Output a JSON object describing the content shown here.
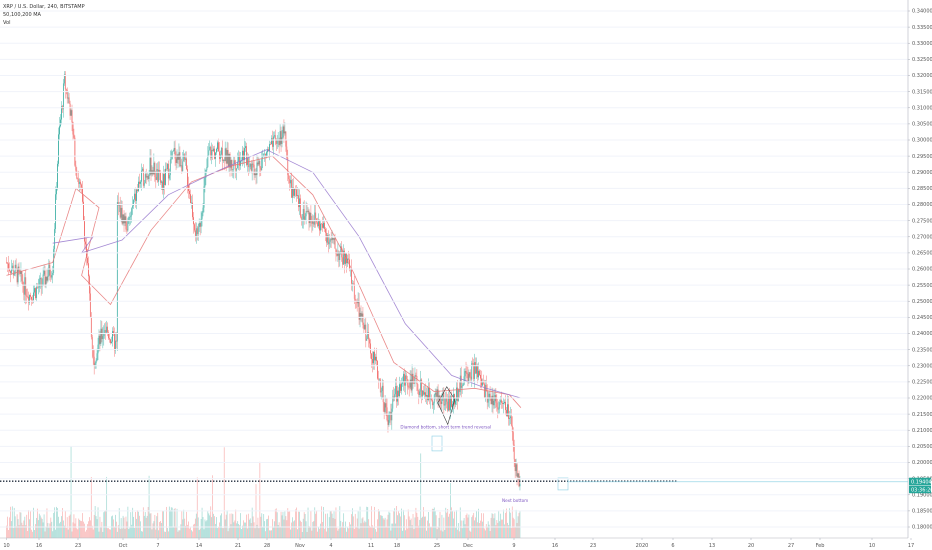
{
  "legend": {
    "symbol_line": "XRP / U.S. Dollar, 240, BITSTAMP",
    "ma_line": "50,100,200 MA",
    "vol_line": "Vol"
  },
  "colors": {
    "up": "#26a69a",
    "down": "#ef5350",
    "ma_fast": "#e57373",
    "ma_slow": "#9575cd",
    "pattern": "#7e57c2",
    "support": "#1e2a3a",
    "price_tag": "#26a69a",
    "current_line": "#9ad6e8"
  },
  "chart_data": {
    "type": "candlestick",
    "y_axis": {
      "ylim": [
        0.18,
        0.34
      ],
      "ticks": [
        "0.34000",
        "0.33500",
        "0.33000",
        "0.32500",
        "0.32000",
        "0.31500",
        "0.31000",
        "0.30500",
        "0.30000",
        "0.29500",
        "0.29000",
        "0.28500",
        "0.28000",
        "0.27500",
        "0.27000",
        "0.26500",
        "0.26000",
        "0.25500",
        "0.25000",
        "0.24500",
        "0.24000",
        "0.23500",
        "0.23000",
        "0.22500",
        "0.22000",
        "0.21500",
        "0.21000",
        "0.20500",
        "0.20000",
        "0.19500",
        "0.19000",
        "0.18500",
        "0.18000"
      ]
    },
    "x_axis": {
      "ticks": [
        "10",
        "16",
        "23",
        "Oct",
        "7",
        "14",
        "21",
        "28",
        "Nov",
        "4",
        "11",
        "18",
        "25",
        "Dec",
        "9",
        "16",
        "23",
        "2020",
        "6",
        "13",
        "20",
        "27",
        "Feb",
        "10",
        "17"
      ]
    },
    "last_price": "0.19404",
    "countdown": "03:36:26",
    "support_level": 0.1942,
    "annotations": [
      {
        "text": "Diamond bottom, short term trend reversal",
        "anchor_time": "Dec 5",
        "price": 0.2105
      },
      {
        "text": "Next bottom",
        "anchor_time": "Dec 17",
        "price": 0.1878
      }
    ],
    "price_path": [
      [
        "Sep 10",
        0.262
      ],
      [
        "Sep 12",
        0.258
      ],
      [
        "Sep 14",
        0.252
      ],
      [
        "Sep 16",
        0.255
      ],
      [
        "Sep 18",
        0.261
      ],
      [
        "Sep 19",
        0.3
      ],
      [
        "Sep 20",
        0.318
      ],
      [
        "Sep 21",
        0.31
      ],
      [
        "Sep 22",
        0.292
      ],
      [
        "Sep 23",
        0.283
      ],
      [
        "Sep 24",
        0.26
      ],
      [
        "Sep 25",
        0.232
      ],
      [
        "Sep 27",
        0.242
      ],
      [
        "Sep 29",
        0.236
      ],
      [
        "Oct 1",
        0.248
      ],
      [
        "Oct 3",
        0.244
      ],
      [
        "Oct 5",
        0.248
      ],
      [
        "Oct 7",
        0.256
      ],
      [
        "Oct 9",
        0.28
      ],
      [
        "Oct 11",
        0.273
      ],
      [
        "Oct 13",
        0.287
      ],
      [
        "Oct 15",
        0.292
      ],
      [
        "Oct 17",
        0.286
      ],
      [
        "Oct 19",
        0.296
      ],
      [
        "Oct 21",
        0.292
      ],
      [
        "Oct 23",
        0.268
      ],
      [
        "Oct 25",
        0.296
      ],
      [
        "Oct 27",
        0.297
      ],
      [
        "Oct 29",
        0.292
      ],
      [
        "Oct 31",
        0.296
      ],
      [
        "Nov 2",
        0.291
      ],
      [
        "Nov 4",
        0.296
      ],
      [
        "Nov 6",
        0.3
      ],
      [
        "Nov 7",
        0.303
      ],
      [
        "Nov 8",
        0.286
      ],
      [
        "Nov 10",
        0.278
      ],
      [
        "Nov 12",
        0.276
      ],
      [
        "Nov 14",
        0.272
      ],
      [
        "Nov 16",
        0.266
      ],
      [
        "Nov 18",
        0.262
      ],
      [
        "Nov 20",
        0.246
      ],
      [
        "Nov 22",
        0.236
      ],
      [
        "Nov 24",
        0.222
      ],
      [
        "Nov 25",
        0.212
      ],
      [
        "Nov 26",
        0.22
      ],
      [
        "Nov 28",
        0.226
      ],
      [
        "Nov 30",
        0.224
      ],
      [
        "Dec 2",
        0.221
      ],
      [
        "Dec 4",
        0.22
      ],
      [
        "Dec 6",
        0.218
      ],
      [
        "Dec 8",
        0.226
      ],
      [
        "Dec 10",
        0.229
      ],
      [
        "Dec 12",
        0.221
      ],
      [
        "Dec 14",
        0.219
      ],
      [
        "Dec 16",
        0.215
      ],
      [
        "Dec 17",
        0.198
      ],
      [
        "Dec 18",
        0.194
      ]
    ],
    "series": [
      {
        "name": "50 MA",
        "values": [
          [
            "Sep 10",
            0.258
          ],
          [
            "Sep 18",
            0.262
          ],
          [
            "Sep 22",
            0.285
          ],
          [
            "Sep 26",
            0.279
          ],
          [
            "Oct 3",
            0.258
          ],
          [
            "Oct 8",
            0.249
          ],
          [
            "Oct 15",
            0.272
          ],
          [
            "Oct 22",
            0.287
          ],
          [
            "Oct 29",
            0.292
          ],
          [
            "Nov 5",
            0.295
          ],
          [
            "Nov 12",
            0.283
          ],
          [
            "Nov 19",
            0.259
          ],
          [
            "Nov 26",
            0.231
          ],
          [
            "Dec 3",
            0.222
          ],
          [
            "Dec 10",
            0.223
          ],
          [
            "Dec 16",
            0.221
          ],
          [
            "Dec 18",
            0.217
          ]
        ]
      },
      {
        "name": "100 MA",
        "values": [
          [
            "Sep 18",
            0.268
          ],
          [
            "Sep 25",
            0.27
          ],
          [
            "Oct 3",
            0.265
          ],
          [
            "Oct 10",
            0.269
          ],
          [
            "Oct 18",
            0.283
          ],
          [
            "Oct 26",
            0.29
          ],
          [
            "Nov 4",
            0.297
          ],
          [
            "Nov 12",
            0.29
          ],
          [
            "Nov 20",
            0.27
          ],
          [
            "Nov 28",
            0.243
          ],
          [
            "Dec 6",
            0.227
          ],
          [
            "Dec 12",
            0.223
          ],
          [
            "Dec 18",
            0.22
          ]
        ]
      }
    ]
  }
}
